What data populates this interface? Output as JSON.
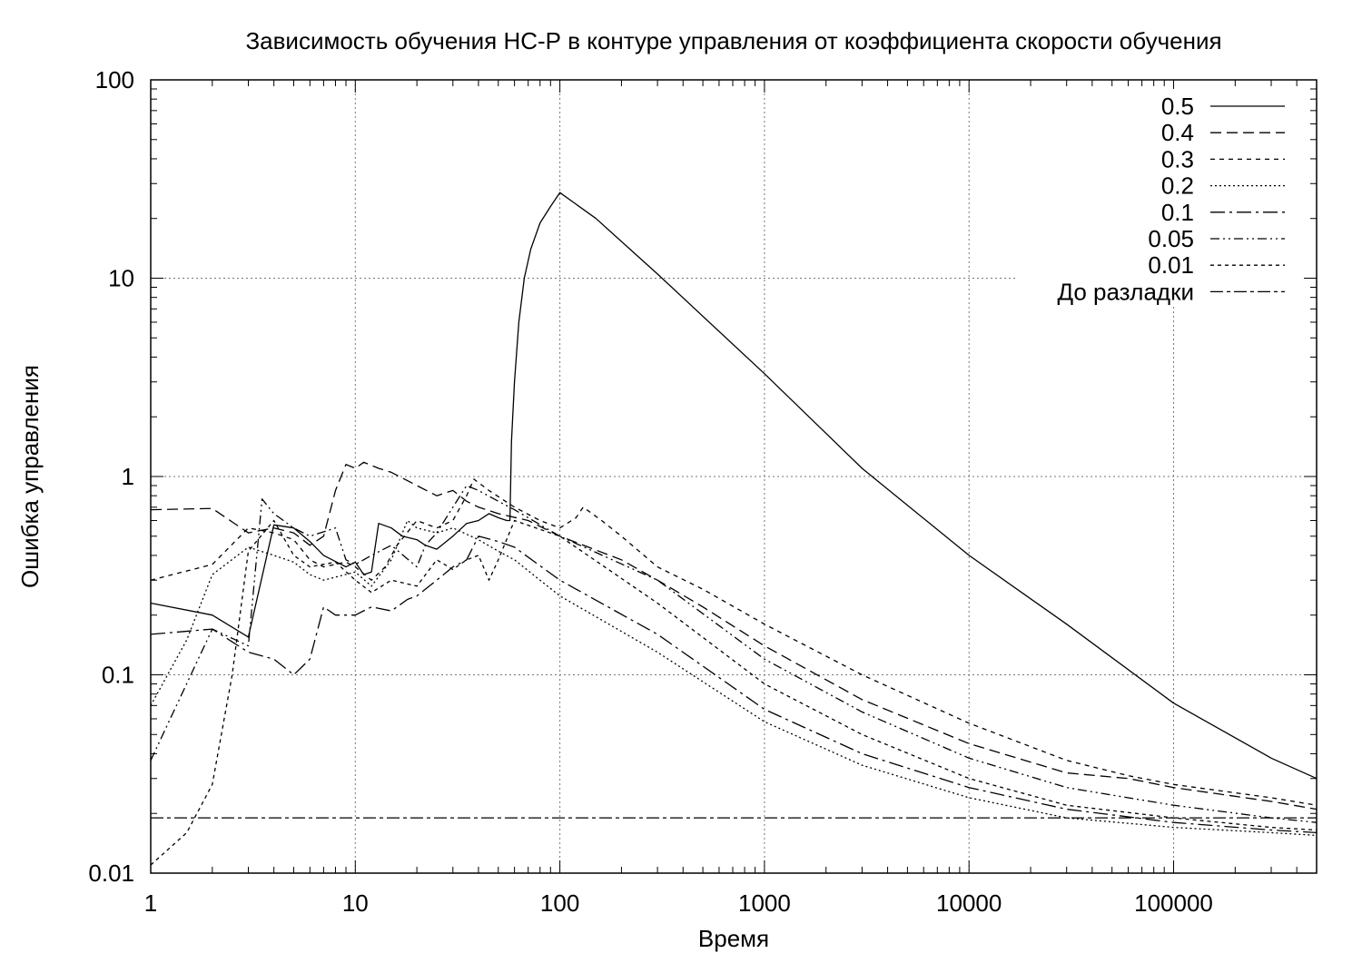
{
  "chart_data": {
    "type": "line",
    "title": "Зависимость обучения НС-Р в контуре управления от коэффициента скорости обучения",
    "xlabel": "Время",
    "ylabel": "Ошибка управления",
    "xscale": "log",
    "yscale": "log",
    "xlim": [
      1,
      500000
    ],
    "ylim": [
      0.01,
      100
    ],
    "xticks": [
      1,
      10,
      100,
      1000,
      10000,
      100000
    ],
    "xtick_labels": [
      "1",
      "10",
      "100",
      "1000",
      "10000",
      "100000"
    ],
    "yticks": [
      0.01,
      0.1,
      1,
      10,
      100
    ],
    "ytick_labels": [
      "0.01",
      "0.1",
      "1",
      "10",
      "100"
    ],
    "grid": true,
    "legend_position": "top-right",
    "series": [
      {
        "name": "0.5",
        "dash": "",
        "points": [
          [
            1,
            0.23
          ],
          [
            2,
            0.2
          ],
          [
            3,
            0.155
          ],
          [
            4,
            0.57
          ],
          [
            5,
            0.55
          ],
          [
            6,
            0.47
          ],
          [
            7,
            0.4
          ],
          [
            9,
            0.35
          ],
          [
            10,
            0.37
          ],
          [
            11,
            0.32
          ],
          [
            12,
            0.33
          ],
          [
            13,
            0.58
          ],
          [
            15,
            0.55
          ],
          [
            17,
            0.5
          ],
          [
            20,
            0.48
          ],
          [
            22,
            0.45
          ],
          [
            25,
            0.43
          ],
          [
            30,
            0.5
          ],
          [
            35,
            0.58
          ],
          [
            40,
            0.6
          ],
          [
            45,
            0.65
          ],
          [
            50,
            0.62
          ],
          [
            55,
            0.6
          ],
          [
            57,
            0.6
          ],
          [
            58,
            1.5
          ],
          [
            60,
            3
          ],
          [
            63,
            6
          ],
          [
            67,
            10
          ],
          [
            72,
            14
          ],
          [
            80,
            19
          ],
          [
            90,
            23
          ],
          [
            100,
            27
          ],
          [
            150,
            20
          ],
          [
            300,
            10.5
          ],
          [
            1000,
            3.3
          ],
          [
            3000,
            1.1
          ],
          [
            10000,
            0.4
          ],
          [
            30000,
            0.18
          ],
          [
            100000,
            0.072
          ],
          [
            300000,
            0.038
          ],
          [
            500000,
            0.03
          ]
        ]
      },
      {
        "name": "0.4",
        "dash": "12,6",
        "points": [
          [
            1,
            0.68
          ],
          [
            2,
            0.69
          ],
          [
            3,
            0.52
          ],
          [
            4,
            0.55
          ],
          [
            5,
            0.52
          ],
          [
            6,
            0.45
          ],
          [
            7,
            0.5
          ],
          [
            8,
            0.85
          ],
          [
            9,
            1.15
          ],
          [
            10,
            1.1
          ],
          [
            11,
            1.18
          ],
          [
            13,
            1.1
          ],
          [
            15,
            1.05
          ],
          [
            20,
            0.9
          ],
          [
            25,
            0.8
          ],
          [
            30,
            0.85
          ],
          [
            35,
            0.75
          ],
          [
            40,
            0.7
          ],
          [
            50,
            0.65
          ],
          [
            70,
            0.6
          ],
          [
            100,
            0.5
          ],
          [
            200,
            0.38
          ],
          [
            300,
            0.3
          ],
          [
            500,
            0.22
          ],
          [
            1000,
            0.14
          ],
          [
            3000,
            0.075
          ],
          [
            10000,
            0.045
          ],
          [
            30000,
            0.032
          ],
          [
            60000,
            0.03
          ],
          [
            100000,
            0.027
          ],
          [
            300000,
            0.023
          ],
          [
            500000,
            0.021
          ]
        ]
      },
      {
        "name": "0.3",
        "dash": "5,5",
        "points": [
          [
            1,
            0.3
          ],
          [
            2,
            0.36
          ],
          [
            3,
            0.55
          ],
          [
            4,
            0.52
          ],
          [
            5,
            0.48
          ],
          [
            6,
            0.38
          ],
          [
            7,
            0.35
          ],
          [
            9,
            0.37
          ],
          [
            10,
            0.35
          ],
          [
            12,
            0.3
          ],
          [
            14,
            0.35
          ],
          [
            16,
            0.45
          ],
          [
            20,
            0.6
          ],
          [
            25,
            0.55
          ],
          [
            30,
            0.6
          ],
          [
            35,
            0.8
          ],
          [
            38,
            0.97
          ],
          [
            45,
            0.85
          ],
          [
            60,
            0.7
          ],
          [
            80,
            0.6
          ],
          [
            100,
            0.55
          ],
          [
            120,
            0.62
          ],
          [
            130,
            0.7
          ],
          [
            160,
            0.6
          ],
          [
            200,
            0.5
          ],
          [
            300,
            0.35
          ],
          [
            500,
            0.27
          ],
          [
            1000,
            0.18
          ],
          [
            3000,
            0.1
          ],
          [
            10000,
            0.057
          ],
          [
            30000,
            0.037
          ],
          [
            60000,
            0.031
          ],
          [
            100000,
            0.028
          ],
          [
            300000,
            0.024
          ],
          [
            500000,
            0.022
          ]
        ]
      },
      {
        "name": "0.2",
        "dash": "2,3",
        "points": [
          [
            1,
            0.07
          ],
          [
            1.5,
            0.15
          ],
          [
            2,
            0.32
          ],
          [
            3,
            0.44
          ],
          [
            4,
            0.4
          ],
          [
            5,
            0.37
          ],
          [
            6,
            0.32
          ],
          [
            7,
            0.3
          ],
          [
            10,
            0.33
          ],
          [
            12,
            0.28
          ],
          [
            15,
            0.38
          ],
          [
            18,
            0.6
          ],
          [
            20,
            0.55
          ],
          [
            25,
            0.52
          ],
          [
            30,
            0.55
          ],
          [
            40,
            0.48
          ],
          [
            50,
            0.42
          ],
          [
            60,
            0.38
          ],
          [
            100,
            0.25
          ],
          [
            300,
            0.13
          ],
          [
            1000,
            0.058
          ],
          [
            3000,
            0.035
          ],
          [
            10000,
            0.024
          ],
          [
            30000,
            0.019
          ],
          [
            100000,
            0.017
          ],
          [
            300000,
            0.016
          ],
          [
            500000,
            0.0155
          ]
        ]
      },
      {
        "name": "0.1",
        "dash": "16,5,3,5",
        "points": [
          [
            1,
            0.16
          ],
          [
            2,
            0.17
          ],
          [
            3,
            0.13
          ],
          [
            4,
            0.12
          ],
          [
            5,
            0.1
          ],
          [
            6,
            0.12
          ],
          [
            7,
            0.22
          ],
          [
            8,
            0.2
          ],
          [
            10,
            0.2
          ],
          [
            12,
            0.22
          ],
          [
            15,
            0.21
          ],
          [
            18,
            0.24
          ],
          [
            20,
            0.25
          ],
          [
            25,
            0.3
          ],
          [
            30,
            0.35
          ],
          [
            35,
            0.38
          ],
          [
            40,
            0.5
          ],
          [
            50,
            0.47
          ],
          [
            60,
            0.44
          ],
          [
            100,
            0.3
          ],
          [
            300,
            0.16
          ],
          [
            1000,
            0.067
          ],
          [
            3000,
            0.04
          ],
          [
            10000,
            0.027
          ],
          [
            30000,
            0.021
          ],
          [
            100000,
            0.018
          ],
          [
            300000,
            0.0165
          ],
          [
            500000,
            0.016
          ]
        ]
      },
      {
        "name": "0.05",
        "dash": "10,4,2,4,2,4",
        "points": [
          [
            1,
            0.037
          ],
          [
            2,
            0.17
          ],
          [
            3,
            0.14
          ],
          [
            3.5,
            0.77
          ],
          [
            4,
            0.65
          ],
          [
            5,
            0.55
          ],
          [
            6,
            0.5
          ],
          [
            8,
            0.55
          ],
          [
            9,
            0.38
          ],
          [
            10,
            0.36
          ],
          [
            12,
            0.4
          ],
          [
            15,
            0.45
          ],
          [
            20,
            0.35
          ],
          [
            22,
            0.45
          ],
          [
            25,
            0.52
          ],
          [
            30,
            0.7
          ],
          [
            35,
            0.9
          ],
          [
            40,
            0.85
          ],
          [
            50,
            0.75
          ],
          [
            60,
            0.68
          ],
          [
            100,
            0.5
          ],
          [
            300,
            0.3
          ],
          [
            1000,
            0.12
          ],
          [
            3000,
            0.065
          ],
          [
            10000,
            0.038
          ],
          [
            30000,
            0.027
          ],
          [
            100000,
            0.022
          ],
          [
            300000,
            0.019
          ],
          [
            500000,
            0.018
          ]
        ]
      },
      {
        "name": "0.01",
        "dash": "4,4",
        "points": [
          [
            1,
            0.011
          ],
          [
            1.5,
            0.016
          ],
          [
            2,
            0.028
          ],
          [
            2.5,
            0.1
          ],
          [
            3,
            0.42
          ],
          [
            4,
            0.6
          ],
          [
            5,
            0.4
          ],
          [
            6,
            0.35
          ],
          [
            8,
            0.37
          ],
          [
            10,
            0.3
          ],
          [
            12,
            0.26
          ],
          [
            15,
            0.3
          ],
          [
            20,
            0.28
          ],
          [
            25,
            0.38
          ],
          [
            30,
            0.34
          ],
          [
            35,
            0.38
          ],
          [
            40,
            0.4
          ],
          [
            45,
            0.3
          ],
          [
            50,
            0.38
          ],
          [
            60,
            0.6
          ],
          [
            100,
            0.5
          ],
          [
            300,
            0.23
          ],
          [
            1000,
            0.09
          ],
          [
            3000,
            0.05
          ],
          [
            10000,
            0.03
          ],
          [
            30000,
            0.022
          ],
          [
            100000,
            0.019
          ],
          [
            300000,
            0.017
          ],
          [
            500000,
            0.0165
          ]
        ]
      },
      {
        "name": "До разладки",
        "dash": "14,4,4,4",
        "points": [
          [
            1,
            0.019
          ],
          [
            500000,
            0.019
          ]
        ]
      }
    ]
  }
}
